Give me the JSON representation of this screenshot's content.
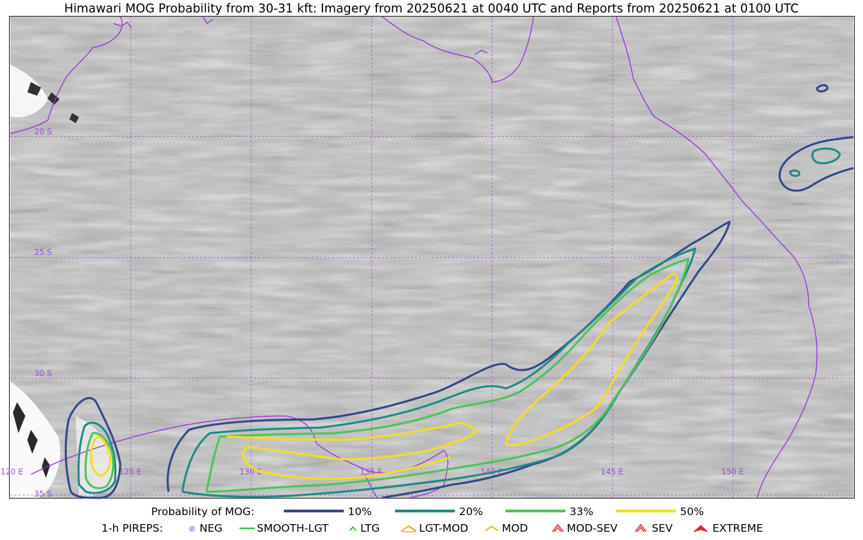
{
  "title": "Himawari MOG Probability from 30-31 kft: Imagery from 20250621 at 0040 UTC and Reports from 20250621 at 0100 UTC",
  "map": {
    "lat_labels": [
      "20 S",
      "25 S",
      "30 S",
      "35 S"
    ],
    "lon_labels": [
      "120 E",
      "125 E",
      "130 E",
      "135 E",
      "140 E",
      "145 E",
      "150 E"
    ],
    "grid_color": "#9b4fd0",
    "coast_color": "#9b30d8"
  },
  "legend": {
    "probability_label": "Probability of MOG:",
    "probability_levels": [
      {
        "label": "10%",
        "color": "#34488a"
      },
      {
        "label": "20%",
        "color": "#1e8c86"
      },
      {
        "label": "33%",
        "color": "#4cc459"
      },
      {
        "label": "50%",
        "color": "#f5dd22"
      }
    ],
    "pireps_label": "1-h PIREPS:",
    "pireps": [
      {
        "label": "NEG",
        "icon": "neg-circle-icon",
        "color": "#b0b0ff"
      },
      {
        "label": "SMOOTH-LGT",
        "icon": "line-icon",
        "color": "#22cc22"
      },
      {
        "label": "LTG",
        "icon": "chevron-icon",
        "color": "#11cc11"
      },
      {
        "label": "LGT-MOD",
        "icon": "double-chevron-icon",
        "color": "#f2b01e"
      },
      {
        "label": "MOD",
        "icon": "chevron-icon",
        "color": "#f2b01e"
      },
      {
        "label": "MOD-SEV",
        "icon": "double-chevron-icon",
        "color": "#e02424"
      },
      {
        "label": "SEV",
        "icon": "double-chevron-icon",
        "color": "#e02424"
      },
      {
        "label": "EXTREME",
        "icon": "filled-chevron-icon",
        "color": "#e02424"
      }
    ]
  }
}
